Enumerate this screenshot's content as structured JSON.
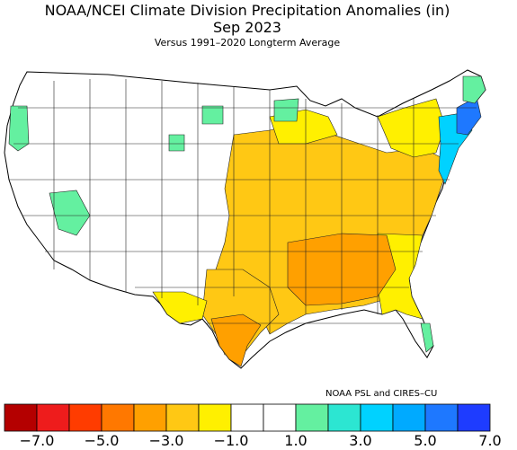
{
  "title": "NOAA/NCEI Climate Division Precipitation Anomalies (in)",
  "period": "Sep 2023",
  "baseline": "Versus 1991–2020 Longterm Average",
  "credit": "NOAA PSL and CIRES–CU",
  "map_region": "Contiguous United States climate divisions",
  "legend": {
    "colors": [
      "#b40000",
      "#ee1c1c",
      "#ff3c00",
      "#ff7800",
      "#ffa000",
      "#ffc814",
      "#fff000",
      "#ffffff",
      "#ffffff",
      "#64f0a0",
      "#2ce6d2",
      "#00d2ff",
      "#00aaff",
      "#1e78ff",
      "#1e3cff"
    ],
    "tick_labels": [
      "−7.0",
      "−5.0",
      "−3.0",
      "−1.0",
      "1.0",
      "3.0",
      "5.0",
      "7.0"
    ]
  },
  "regions": [
    {
      "name": "Pacific Northwest coast",
      "color": "#64f0a0"
    },
    {
      "name": "Western Nevada",
      "color": "#64f0a0"
    },
    {
      "name": "Western Montana",
      "color": "#64f0a0"
    },
    {
      "name": "Northern Minnesota",
      "color": "#64f0a0"
    },
    {
      "name": "Upper Midwest",
      "color": "#ffc814"
    },
    {
      "name": "Great Plains and Lower Mississippi Valley",
      "color": "#ffc814"
    },
    {
      "name": "Mid-South",
      "color": "#ffa000"
    },
    {
      "name": "Gulf Coast of Texas",
      "color": "#ffa000"
    },
    {
      "name": "West Texas",
      "color": "#fff000"
    },
    {
      "name": "Southeast",
      "color": "#fff000"
    },
    {
      "name": "Northeast interior",
      "color": "#fff000"
    },
    {
      "name": "New England coast",
      "color": "#00d2ff"
    },
    {
      "name": "Southern New England",
      "color": "#1e78ff"
    },
    {
      "name": "South Florida",
      "color": "#64f0a0"
    }
  ]
}
